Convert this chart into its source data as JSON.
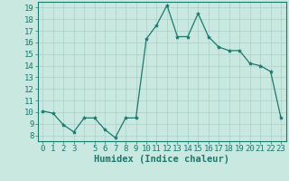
{
  "x": [
    0,
    1,
    2,
    3,
    4,
    5,
    6,
    7,
    8,
    9,
    10,
    11,
    12,
    13,
    14,
    15,
    16,
    17,
    18,
    19,
    20,
    21,
    22,
    23
  ],
  "y": [
    10.1,
    9.9,
    8.9,
    8.3,
    9.5,
    9.5,
    8.5,
    7.8,
    9.5,
    9.5,
    16.3,
    17.5,
    19.2,
    16.5,
    16.5,
    18.5,
    16.5,
    15.6,
    15.3,
    15.3,
    14.2,
    14.0,
    13.5,
    9.5
  ],
  "line_color": "#1a7a6e",
  "marker": "*",
  "marker_size": 3,
  "bg_color": "#c8e8e0",
  "grid_color": "#aacfc8",
  "xlabel": "Humidex (Indice chaleur)",
  "xlim": [
    -0.5,
    23.5
  ],
  "ylim": [
    7.5,
    19.5
  ],
  "yticks": [
    8,
    9,
    10,
    11,
    12,
    13,
    14,
    15,
    16,
    17,
    18,
    19
  ],
  "tick_color": "#1a7a6e",
  "axis_color": "#1a7a6e",
  "xlabel_fontsize": 7.5,
  "tick_fontsize": 6.5
}
